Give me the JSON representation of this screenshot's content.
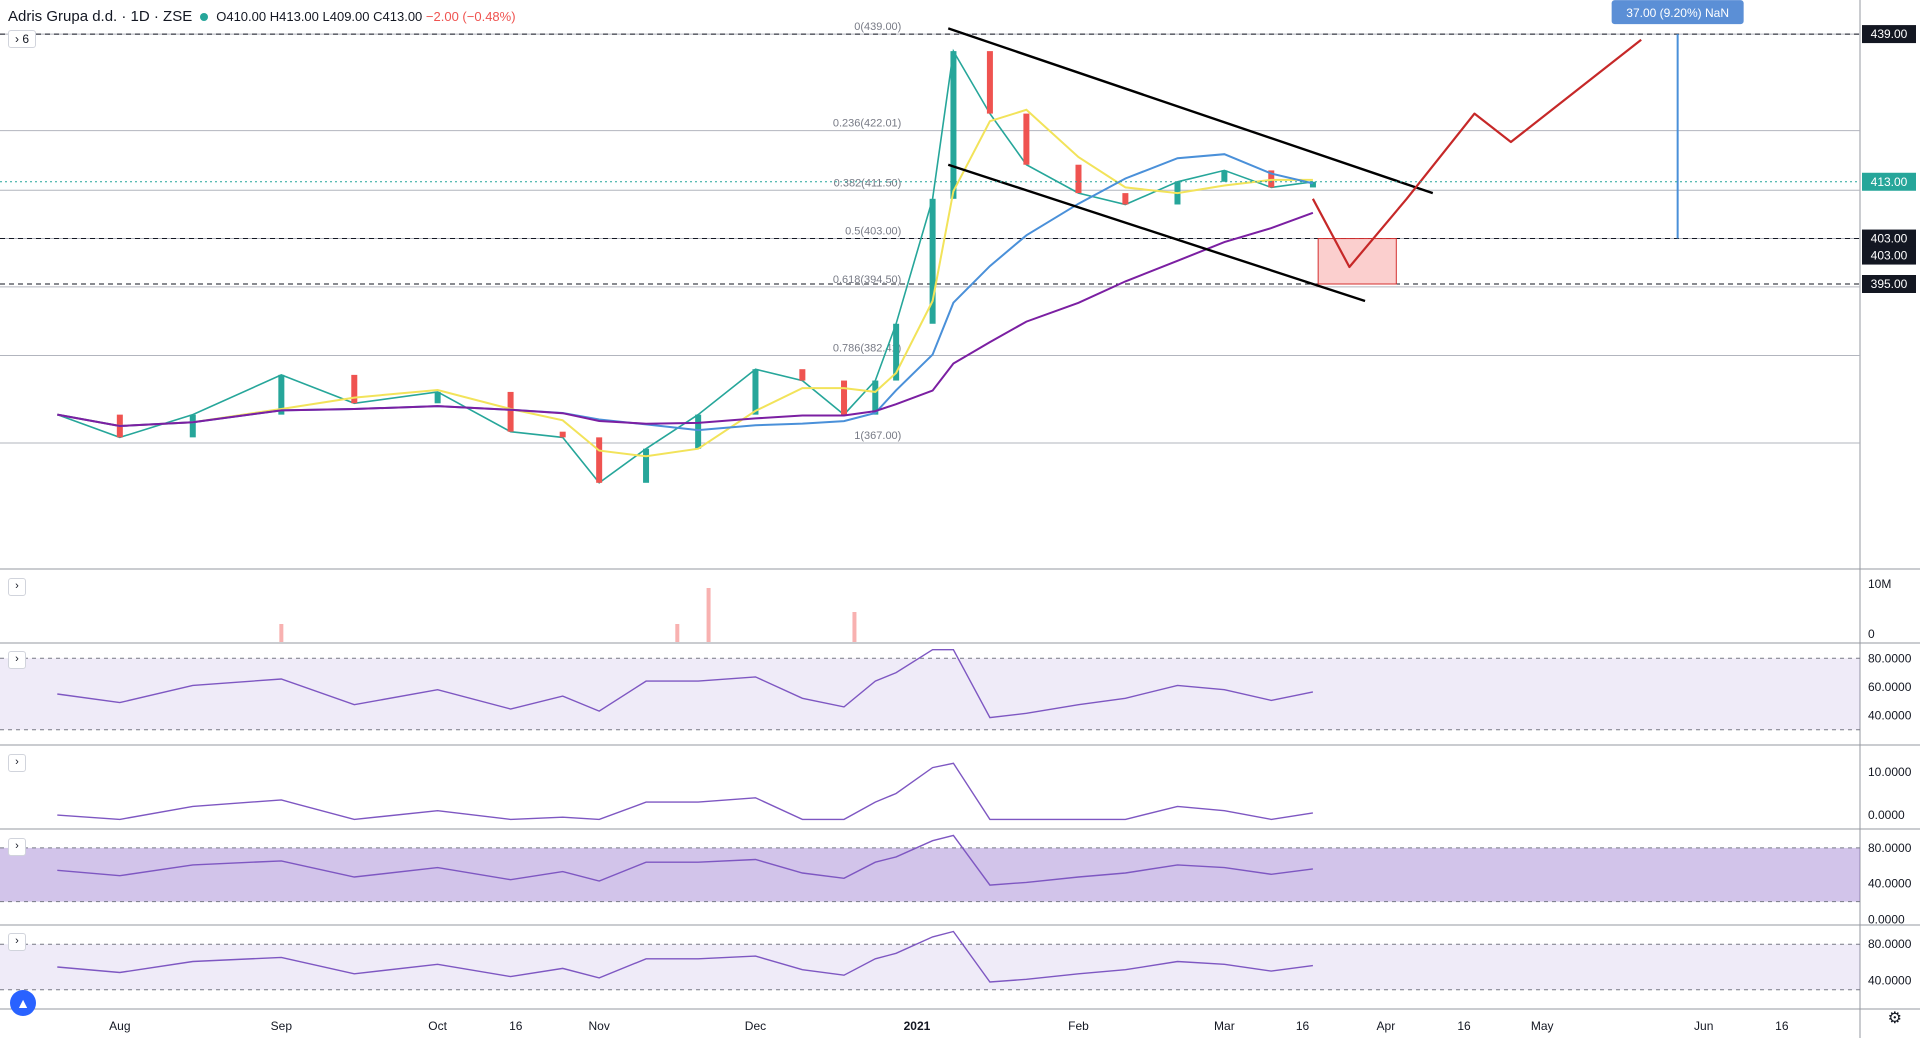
{
  "header": {
    "symbol": "Adris Grupa d.d. · 1D · ZSE",
    "open": "O410.00",
    "high": "H413.00",
    "low": "L409.00",
    "close": "C413.00",
    "change": "−2.00 (−0.48%)",
    "indicator_count": "6"
  },
  "chart_data": [
    {
      "type": "line",
      "pane": "price",
      "title": "",
      "x_ticks": [
        "Aug",
        "Sep",
        "Oct",
        "16",
        "Nov",
        "Dec",
        "2021",
        "Feb",
        "Mar",
        "16",
        "Apr",
        "16",
        "May",
        "Jun",
        "16"
      ],
      "ylim": [
        345,
        445
      ],
      "price_axis_labels": [
        "439.00",
        "413.00",
        "403.00",
        "403.00",
        "395.00"
      ],
      "last_price": 413,
      "fibonacci_levels": [
        {
          "label": "0(439.00)",
          "value": 439.0
        },
        {
          "label": "0.236(422.01)",
          "value": 422.01
        },
        {
          "label": "0.382(411.50)",
          "value": 411.5
        },
        {
          "label": "0.5(403.00)",
          "value": 403.0
        },
        {
          "label": "0.618(394.50)",
          "value": 394.5
        },
        {
          "label": "0.786(382.41)",
          "value": 382.41
        },
        {
          "label": "1(367.00)",
          "value": 367.0
        }
      ],
      "projection_label": "37.00 (9.20%) NaN",
      "close_series": {
        "points": [
          [
            "2020-07-20",
            372
          ],
          [
            "2020-08-01",
            368
          ],
          [
            "2020-08-15",
            372
          ],
          [
            "2020-09-01",
            379
          ],
          [
            "2020-09-15",
            374
          ],
          [
            "2020-10-01",
            376
          ],
          [
            "2020-10-15",
            369
          ],
          [
            "2020-10-25",
            368
          ],
          [
            "2020-11-01",
            360
          ],
          [
            "2020-11-10",
            366
          ],
          [
            "2020-11-20",
            372
          ],
          [
            "2020-12-01",
            380
          ],
          [
            "2020-12-10",
            378
          ],
          [
            "2020-12-18",
            372
          ],
          [
            "2020-12-24",
            378
          ],
          [
            "2020-12-28",
            388
          ],
          [
            "2021-01-04",
            410
          ],
          [
            "2021-01-08",
            436
          ],
          [
            "2021-01-15",
            425
          ],
          [
            "2021-01-22",
            416
          ],
          [
            "2021-02-01",
            411
          ],
          [
            "2021-02-10",
            409
          ],
          [
            "2021-02-20",
            413
          ],
          [
            "2021-03-01",
            415
          ],
          [
            "2021-03-10",
            412
          ],
          [
            "2021-03-18",
            413
          ]
        ]
      },
      "projection_path": [
        [
          "2021-03-18",
          410
        ],
        [
          "2021-03-25",
          398
        ],
        [
          "2021-04-05",
          410
        ],
        [
          "2021-04-18",
          425
        ],
        [
          "2021-04-25",
          420
        ],
        [
          "2021-05-20",
          438
        ]
      ],
      "colors": {
        "up": "#26a69a",
        "down": "#ef5350",
        "ma_long": "#7b1fa2",
        "ma_mid": "#4a90d9",
        "ma_short": "#f2e35a",
        "projection": "#c62828"
      }
    },
    {
      "type": "bar",
      "pane": "volume",
      "axis_labels": [
        "10M",
        "0"
      ],
      "spikes": [
        [
          "2020-11-22",
          9
        ],
        [
          "2020-12-20",
          5
        ],
        [
          "2020-11-16",
          3
        ],
        [
          "2020-09-01",
          3
        ]
      ]
    },
    {
      "type": "line",
      "pane": "rsi",
      "axis_labels": [
        "80.0000",
        "60.0000",
        "40.0000"
      ],
      "ylim": [
        20,
        90
      ]
    },
    {
      "type": "line",
      "pane": "macd",
      "axis_labels": [
        "10.0000",
        "0.0000"
      ],
      "ylim": [
        -3,
        16
      ]
    },
    {
      "type": "line",
      "pane": "stochastic",
      "axis_labels": [
        "80.0000",
        "40.0000",
        "0.0000"
      ],
      "ylim": [
        -5,
        100
      ]
    },
    {
      "type": "line",
      "pane": "oscillator",
      "axis_labels": [
        "80.0000",
        "40.0000"
      ],
      "ylim": [
        10,
        100
      ]
    }
  ]
}
